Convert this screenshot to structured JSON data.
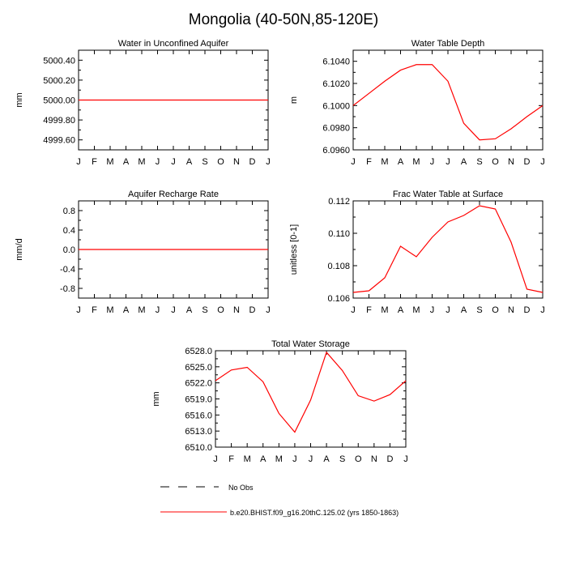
{
  "figure": {
    "title": "Mongolia (40-50N,85-120E)"
  },
  "legend": {
    "entries": [
      {
        "label": "No Obs",
        "style": "dashed",
        "color": "#000000"
      },
      {
        "label": "b.e20.BHIST.f09_g16.20thC.125.02 (yrs 1850-1863)",
        "style": "solid",
        "color": "#ff0000"
      }
    ]
  },
  "chart_data": [
    {
      "type": "line",
      "title": "Water in Unconfined Aquifer",
      "ylabel": "mm",
      "xlabel": "",
      "x": [
        "J",
        "F",
        "M",
        "A",
        "M",
        "J",
        "J",
        "A",
        "S",
        "O",
        "N",
        "D",
        "J"
      ],
      "ylim": [
        4999.5,
        5000.5
      ],
      "yticks": [
        4999.6,
        4999.8,
        5000.0,
        5000.2,
        5000.4
      ],
      "ytick_labels": [
        "4999.60",
        "4999.80",
        "5000.00",
        "5000.20",
        "5000.40"
      ],
      "series": [
        {
          "values": [
            5000,
            5000,
            5000,
            5000,
            5000,
            5000,
            5000,
            5000,
            5000,
            5000,
            5000,
            5000,
            5000
          ],
          "color": "#ff0000"
        }
      ]
    },
    {
      "type": "line",
      "title": "Water Table Depth",
      "ylabel": "m",
      "xlabel": "",
      "x": [
        "J",
        "F",
        "M",
        "A",
        "M",
        "J",
        "J",
        "A",
        "S",
        "O",
        "N",
        "D",
        "J"
      ],
      "ylim": [
        6.096,
        6.105
      ],
      "yticks": [
        6.096,
        6.098,
        6.1,
        6.102,
        6.104
      ],
      "ytick_labels": [
        "6.0960",
        "6.0980",
        "6.1000",
        "6.1020",
        "6.1040"
      ],
      "series": [
        {
          "values": [
            6.1,
            6.1011,
            6.1022,
            6.1032,
            6.1037,
            6.1037,
            6.1022,
            6.0984,
            6.0969,
            6.097,
            6.0979,
            6.099,
            6.1
          ],
          "color": "#ff0000"
        }
      ]
    },
    {
      "type": "line",
      "title": "Aquifer Recharge Rate",
      "ylabel": "mm/d",
      "xlabel": "",
      "x": [
        "J",
        "F",
        "M",
        "A",
        "M",
        "J",
        "J",
        "A",
        "S",
        "O",
        "N",
        "D",
        "J"
      ],
      "ylim": [
        -1.0,
        1.0
      ],
      "yticks": [
        -0.8,
        -0.4,
        0.0,
        0.4,
        0.8
      ],
      "ytick_labels": [
        "-0.8",
        "-0.4",
        "0.0",
        "0.4",
        "0.8"
      ],
      "series": [
        {
          "values": [
            0,
            0,
            0,
            0,
            0,
            0,
            0,
            0,
            0,
            0,
            0,
            0,
            0
          ],
          "color": "#ff0000"
        }
      ]
    },
    {
      "type": "line",
      "title": "Frac Water Table at Surface",
      "ylabel": "unitless [0-1]",
      "xlabel": "",
      "x": [
        "J",
        "F",
        "M",
        "A",
        "M",
        "J",
        "J",
        "A",
        "S",
        "O",
        "N",
        "D",
        "J"
      ],
      "ylim": [
        0.106,
        0.112
      ],
      "yticks": [
        0.106,
        0.108,
        0.11,
        0.112
      ],
      "ytick_labels": [
        "0.106",
        "0.108",
        "0.110",
        "0.112"
      ],
      "series": [
        {
          "values": [
            0.10635,
            0.10645,
            0.10725,
            0.1092,
            0.10855,
            0.10975,
            0.1107,
            0.1111,
            0.1117,
            0.1115,
            0.10945,
            0.10655,
            0.10635
          ],
          "color": "#ff0000"
        }
      ]
    },
    {
      "type": "line",
      "title": "Total Water Storage",
      "ylabel": "mm",
      "xlabel": "",
      "x": [
        "J",
        "F",
        "M",
        "A",
        "M",
        "J",
        "J",
        "A",
        "S",
        "O",
        "N",
        "D",
        "J"
      ],
      "ylim": [
        6510.0,
        6528.0
      ],
      "yticks": [
        6510,
        6513,
        6516,
        6519,
        6522,
        6525,
        6528
      ],
      "ytick_labels": [
        "6510.0",
        "6513.0",
        "6516.0",
        "6519.0",
        "6522.0",
        "6525.0",
        "6528.0"
      ],
      "series": [
        {
          "values": [
            6522.4,
            6524.4,
            6524.9,
            6522.2,
            6516.3,
            6512.8,
            6518.8,
            6527.7,
            6524.3,
            6519.6,
            6518.6,
            6519.8,
            6522.4
          ],
          "color": "#ff0000"
        }
      ]
    }
  ]
}
